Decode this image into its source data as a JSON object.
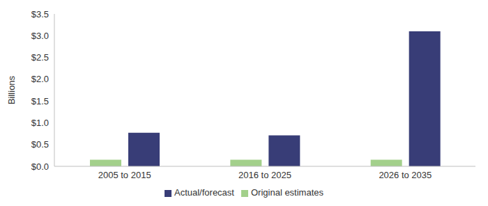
{
  "chart_data": {
    "type": "bar",
    "y_label": "Billions",
    "categories": [
      "2005 to 2015",
      "2016 to 2025",
      "2026 to 2035"
    ],
    "series": [
      {
        "name": "Original estimates",
        "color": "#a3d08b",
        "values": [
          0.15,
          0.15,
          0.15
        ]
      },
      {
        "name": "Actual/forecast",
        "color": "#383d77",
        "values": [
          0.77,
          0.71,
          3.1
        ]
      }
    ],
    "ylim": [
      0,
      3.5
    ],
    "yticks": [
      {
        "value": 0,
        "label": "$0.0"
      },
      {
        "value": 0.5,
        "label": "$0.5"
      },
      {
        "value": 1,
        "label": "$1.0"
      },
      {
        "value": 1.5,
        "label": "$1.5"
      },
      {
        "value": 2,
        "label": "$2.0"
      },
      {
        "value": 2.5,
        "label": "$2.5"
      },
      {
        "value": 3,
        "label": "$3.0"
      },
      {
        "value": 3.5,
        "label": "$3.5"
      }
    ],
    "grid": false,
    "legend": "bottom"
  }
}
